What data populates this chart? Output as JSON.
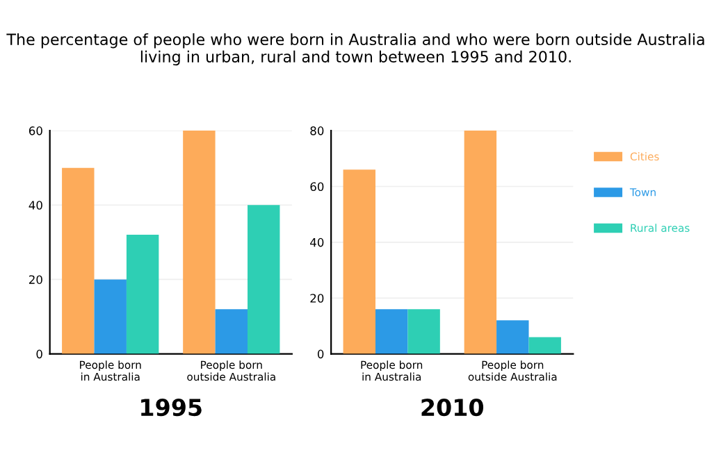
{
  "chart_data": [
    {
      "type": "bar",
      "title": "The percentage of people who were born in Australia and who were born outside Australia living in urban, rural and town between 1995 and 2010.",
      "xlabel": "1995",
      "categories": [
        "People born\nin Australia",
        "People born\noutside Australia"
      ],
      "series": [
        {
          "color": "#fdab5a",
          "values": [
            50,
            60
          ]
        },
        {
          "color": "#2c9ae6",
          "values": [
            20,
            12
          ]
        },
        {
          "color": "#2ecfb4",
          "values": [
            32,
            40
          ]
        }
      ],
      "ylim": [
        0,
        60
      ],
      "yticks": [
        0,
        20,
        40,
        60
      ],
      "grid": "y",
      "legend": false
    },
    {
      "type": "bar",
      "xlabel": "2010",
      "categories": [
        "People born\nin Australia",
        "People born\noutside Australia"
      ],
      "series": [
        {
          "name": "Cities",
          "color": "#fdab5a",
          "values": [
            66,
            80
          ]
        },
        {
          "name": "Town",
          "color": "#2c9ae6",
          "values": [
            16,
            12
          ]
        },
        {
          "name": "Rural areas",
          "color": "#2ecfb4",
          "values": [
            16,
            6
          ]
        }
      ],
      "ylim": [
        0,
        80
      ],
      "yticks": [
        0,
        20,
        40,
        60,
        80
      ],
      "grid": "y",
      "legend": "right"
    }
  ]
}
